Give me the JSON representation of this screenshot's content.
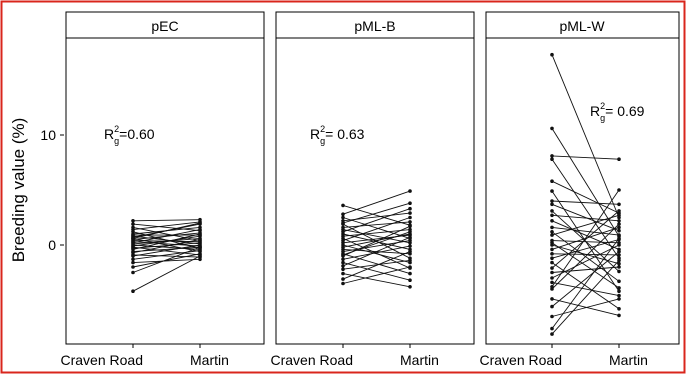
{
  "chart_data": {
    "type": "line",
    "ylabel": "Breeding value (%)",
    "y_ticks": [
      0,
      10
    ],
    "ylim": [
      -9,
      19
    ],
    "grid": false,
    "panels": [
      {
        "title": "pEC",
        "categories": [
          "Craven Road",
          "Martin"
        ],
        "r2_label": "=0.60",
        "series": [
          {
            "values": [
              2.2,
              2.3
            ]
          },
          {
            "values": [
              1.9,
              1.3
            ]
          },
          {
            "values": [
              1.6,
              0.4
            ]
          },
          {
            "values": [
              1.4,
              2.1
            ]
          },
          {
            "values": [
              1.2,
              -0.3
            ]
          },
          {
            "values": [
              1.0,
              1.6
            ]
          },
          {
            "values": [
              0.9,
              0.9
            ]
          },
          {
            "values": [
              0.8,
              0.1
            ]
          },
          {
            "values": [
              0.7,
              1.9
            ]
          },
          {
            "values": [
              0.6,
              -0.6
            ]
          },
          {
            "values": [
              0.5,
              1.1
            ]
          },
          {
            "values": [
              0.4,
              0.3
            ]
          },
          {
            "values": [
              0.3,
              -0.1
            ]
          },
          {
            "values": [
              0.2,
              1.4
            ]
          },
          {
            "values": [
              0.1,
              0.6
            ]
          },
          {
            "values": [
              0.0,
              -0.4
            ]
          },
          {
            "values": [
              -0.1,
              0.8
            ]
          },
          {
            "values": [
              -0.2,
              -0.9
            ]
          },
          {
            "values": [
              -0.3,
              0.2
            ]
          },
          {
            "values": [
              -0.4,
              1.0
            ]
          },
          {
            "values": [
              -0.6,
              -0.2
            ]
          },
          {
            "values": [
              -0.7,
              0.5
            ]
          },
          {
            "values": [
              -0.9,
              -1.1
            ]
          },
          {
            "values": [
              -1.0,
              0.0
            ]
          },
          {
            "values": [
              -1.3,
              -0.5
            ]
          },
          {
            "values": [
              -1.6,
              -1.3
            ]
          },
          {
            "values": [
              -2.0,
              -0.8
            ]
          },
          {
            "values": [
              -2.5,
              -0.2
            ]
          },
          {
            "values": [
              -4.2,
              -1.0
            ]
          },
          {
            "values": [
              0.6,
              2.0
            ]
          }
        ]
      },
      {
        "title": "pML-B",
        "categories": [
          "Craven Road",
          "Martin"
        ],
        "r2_label": "= 0.63",
        "series": [
          {
            "values": [
              3.6,
              1.8
            ]
          },
          {
            "values": [
              2.8,
              4.9
            ]
          },
          {
            "values": [
              2.5,
              0.6
            ]
          },
          {
            "values": [
              2.2,
              2.9
            ]
          },
          {
            "values": [
              1.9,
              -1.2
            ]
          },
          {
            "values": [
              1.6,
              2.1
            ]
          },
          {
            "values": [
              1.4,
              0.2
            ]
          },
          {
            "values": [
              1.2,
              3.3
            ]
          },
          {
            "values": [
              1.0,
              -0.4
            ]
          },
          {
            "values": [
              0.8,
              1.4
            ]
          },
          {
            "values": [
              0.6,
              -2.1
            ]
          },
          {
            "values": [
              0.4,
              2.5
            ]
          },
          {
            "values": [
              0.2,
              0.9
            ]
          },
          {
            "values": [
              0.0,
              -1.6
            ]
          },
          {
            "values": [
              -0.2,
              1.0
            ]
          },
          {
            "values": [
              -0.4,
              -0.8
            ]
          },
          {
            "values": [
              -0.6,
              0.4
            ]
          },
          {
            "values": [
              -0.8,
              -2.6
            ]
          },
          {
            "values": [
              -1.0,
              1.7
            ]
          },
          {
            "values": [
              -1.3,
              -0.1
            ]
          },
          {
            "values": [
              -1.6,
              -3.2
            ]
          },
          {
            "values": [
              -1.9,
              0.7
            ]
          },
          {
            "values": [
              -2.2,
              -1.4
            ]
          },
          {
            "values": [
              -2.6,
              -3.8
            ]
          },
          {
            "values": [
              -3.1,
              -0.6
            ]
          },
          {
            "values": [
              -3.5,
              -2.0
            ]
          },
          {
            "values": [
              2.0,
              3.8
            ]
          },
          {
            "values": [
              -0.9,
              1.2
            ]
          }
        ]
      },
      {
        "title": "pML-W",
        "categories": [
          "Craven Road",
          "Martin"
        ],
        "r2_label": "= 0.69",
        "series": [
          {
            "values": [
              17.3,
              2.5
            ]
          },
          {
            "values": [
              10.6,
              0.8
            ]
          },
          {
            "values": [
              8.1,
              7.8
            ]
          },
          {
            "values": [
              7.8,
              -1.2
            ]
          },
          {
            "values": [
              5.8,
              2.9
            ]
          },
          {
            "values": [
              4.9,
              -4.2
            ]
          },
          {
            "values": [
              4.0,
              3.7
            ]
          },
          {
            "values": [
              3.7,
              1.3
            ]
          },
          {
            "values": [
              3.1,
              -2.4
            ]
          },
          {
            "values": [
              2.7,
              2.2
            ]
          },
          {
            "values": [
              2.2,
              -0.4
            ]
          },
          {
            "values": [
              1.6,
              0.9
            ]
          },
          {
            "values": [
              1.2,
              -3.3
            ]
          },
          {
            "values": [
              0.9,
              2.7
            ]
          },
          {
            "values": [
              0.4,
              0.2
            ]
          },
          {
            "values": [
              0.0,
              -1.7
            ]
          },
          {
            "values": [
              -0.4,
              1.6
            ]
          },
          {
            "values": [
              -0.8,
              -0.9
            ]
          },
          {
            "values": [
              -1.2,
              0.5
            ]
          },
          {
            "values": [
              -1.6,
              -5.8
            ]
          },
          {
            "values": [
              -2.1,
              3.1
            ]
          },
          {
            "values": [
              -2.5,
              -2.0
            ]
          },
          {
            "values": [
              -3.0,
              0.0
            ]
          },
          {
            "values": [
              -3.4,
              -4.6
            ]
          },
          {
            "values": [
              -4.0,
              1.9
            ]
          },
          {
            "values": [
              -4.9,
              -6.4
            ]
          },
          {
            "values": [
              -5.6,
              -0.6
            ]
          },
          {
            "values": [
              -6.5,
              -4.9
            ]
          },
          {
            "values": [
              -7.6,
              0.6
            ]
          },
          {
            "values": [
              -8.1,
              -1.4
            ]
          },
          {
            "values": [
              -3.8,
              5.0
            ]
          },
          {
            "values": [
              0.2,
              -3.9
            ]
          }
        ]
      }
    ]
  }
}
